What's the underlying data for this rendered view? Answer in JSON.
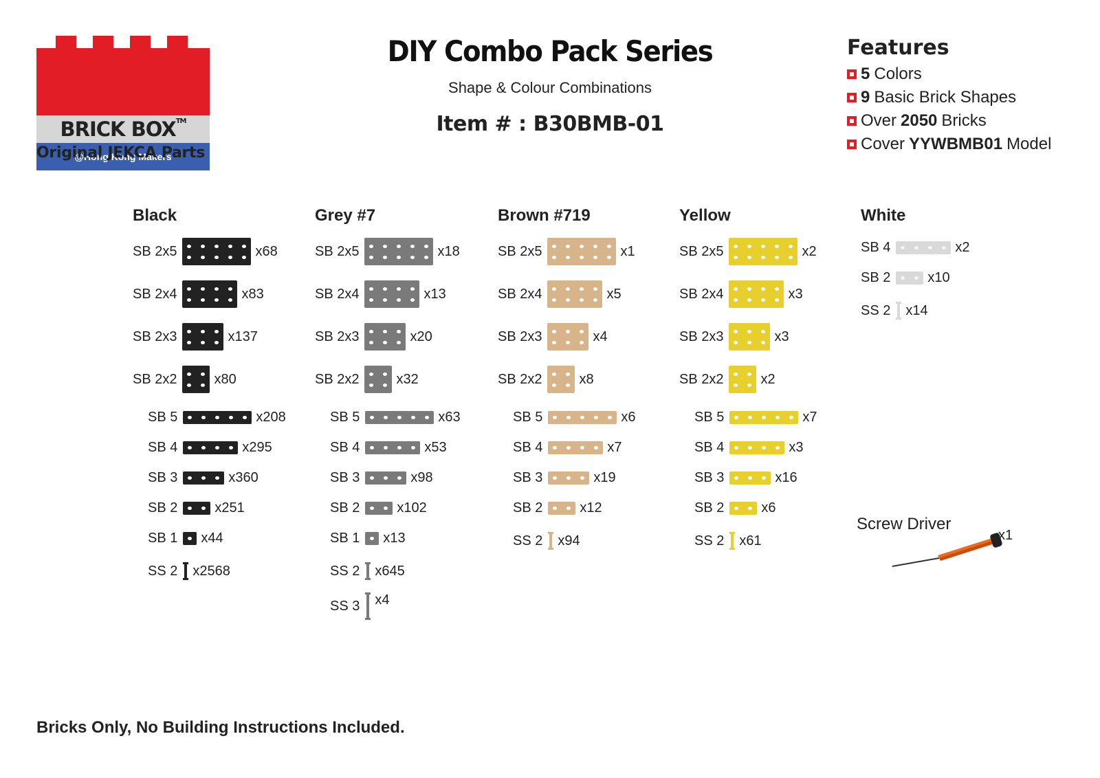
{
  "logo": {
    "brand": "BRICK BOX",
    "trademark": "TM",
    "sub": "@Hong Kong Makers",
    "original": "Original JEKCA Parts"
  },
  "header": {
    "title": "DIY Combo Pack Series",
    "subtitle": "Shape & Colour Combinations",
    "item": "Item # : B30BMB-01"
  },
  "features": {
    "title": "Features",
    "items": [
      {
        "bold": "5",
        "rest": "Colors"
      },
      {
        "bold": "9",
        "rest": "Basic Brick Shapes"
      },
      {
        "pre": "Over",
        "bold": "2050",
        "rest": "Bricks"
      },
      {
        "pre": "Cover",
        "bold": "YYWBMB01",
        "rest": "Model"
      }
    ]
  },
  "colors": {
    "black": "#222222",
    "grey": "#7a7a7a",
    "brown": "#d8b48a",
    "yellow": "#e7cf2d",
    "white": "#d9d9d9",
    "accent_red": "#e21d26",
    "logo_blue": "#3a5fae"
  },
  "columns": [
    {
      "name": "Black",
      "color_key": "black",
      "items": [
        {
          "label": "SB 2x5",
          "shape": "2x5",
          "qty": "x68"
        },
        {
          "label": "SB 2x4",
          "shape": "2x4",
          "qty": "x83"
        },
        {
          "label": "SB 2x3",
          "shape": "2x3",
          "qty": "x137"
        },
        {
          "label": "SB 2x2",
          "shape": "2x2",
          "qty": "x80"
        },
        {
          "label": "SB 5",
          "shape": "5",
          "qty": "x208"
        },
        {
          "label": "SB 4",
          "shape": "4",
          "qty": "x295"
        },
        {
          "label": "SB 3",
          "shape": "3",
          "qty": "x360"
        },
        {
          "label": "SB 2",
          "shape": "2",
          "qty": "x251"
        },
        {
          "label": "SB 1",
          "shape": "1",
          "qty": "x44"
        },
        {
          "label": "SS 2",
          "shape": "ss2",
          "qty": "x2568"
        }
      ]
    },
    {
      "name": "Grey #7",
      "color_key": "grey",
      "items": [
        {
          "label": "SB 2x5",
          "shape": "2x5",
          "qty": "x18"
        },
        {
          "label": "SB 2x4",
          "shape": "2x4",
          "qty": "x13"
        },
        {
          "label": "SB 2x3",
          "shape": "2x3",
          "qty": "x20"
        },
        {
          "label": "SB 2x2",
          "shape": "2x2",
          "qty": "x32"
        },
        {
          "label": "SB 5",
          "shape": "5",
          "qty": "x63"
        },
        {
          "label": "SB 4",
          "shape": "4",
          "qty": "x53"
        },
        {
          "label": "SB 3",
          "shape": "3",
          "qty": "x98"
        },
        {
          "label": "SB 2",
          "shape": "2",
          "qty": "x102"
        },
        {
          "label": "SB 1",
          "shape": "1",
          "qty": "x13"
        },
        {
          "label": "SS 2",
          "shape": "ss2",
          "qty": "x645"
        },
        {
          "label": "SS 3",
          "shape": "ss3",
          "qty": "x4"
        }
      ]
    },
    {
      "name": "Brown #719",
      "color_key": "brown",
      "items": [
        {
          "label": "SB 2x5",
          "shape": "2x5",
          "qty": "x1"
        },
        {
          "label": "SB 2x4",
          "shape": "2x4",
          "qty": "x5"
        },
        {
          "label": "SB 2x3",
          "shape": "2x3",
          "qty": "x4"
        },
        {
          "label": "SB 2x2",
          "shape": "2x2",
          "qty": "x8"
        },
        {
          "label": "SB 5",
          "shape": "5",
          "qty": "x6"
        },
        {
          "label": "SB 4",
          "shape": "4",
          "qty": "x7"
        },
        {
          "label": "SB 3",
          "shape": "3",
          "qty": "x19"
        },
        {
          "label": "SB 2",
          "shape": "2",
          "qty": "x12"
        },
        {
          "label": "SS 2",
          "shape": "ss2",
          "qty": "x94"
        }
      ]
    },
    {
      "name": "Yellow",
      "color_key": "yellow",
      "items": [
        {
          "label": "SB 2x5",
          "shape": "2x5",
          "qty": "x2"
        },
        {
          "label": "SB 2x4",
          "shape": "2x4",
          "qty": "x3"
        },
        {
          "label": "SB 2x3",
          "shape": "2x3",
          "qty": "x3"
        },
        {
          "label": "SB 2x2",
          "shape": "2x2",
          "qty": "x2"
        },
        {
          "label": "SB 5",
          "shape": "5",
          "qty": "x7"
        },
        {
          "label": "SB 4",
          "shape": "4",
          "qty": "x3"
        },
        {
          "label": "SB 3",
          "shape": "3",
          "qty": "x16"
        },
        {
          "label": "SB 2",
          "shape": "2",
          "qty": "x6"
        },
        {
          "label": "SS 2",
          "shape": "ss2",
          "qty": "x61"
        }
      ]
    },
    {
      "name": "White",
      "color_key": "white",
      "items": [
        {
          "label": "SB 4",
          "shape": "4",
          "qty": "x2"
        },
        {
          "label": "SB 2",
          "shape": "2",
          "qty": "x10"
        },
        {
          "label": "SS 2",
          "shape": "ss2",
          "qty": "x14"
        }
      ]
    }
  ],
  "screwdriver": {
    "label": "Screw Driver",
    "qty": "x1",
    "icon": "screwdriver-icon"
  },
  "footer": "Bricks Only, No Building Instructions Included."
}
